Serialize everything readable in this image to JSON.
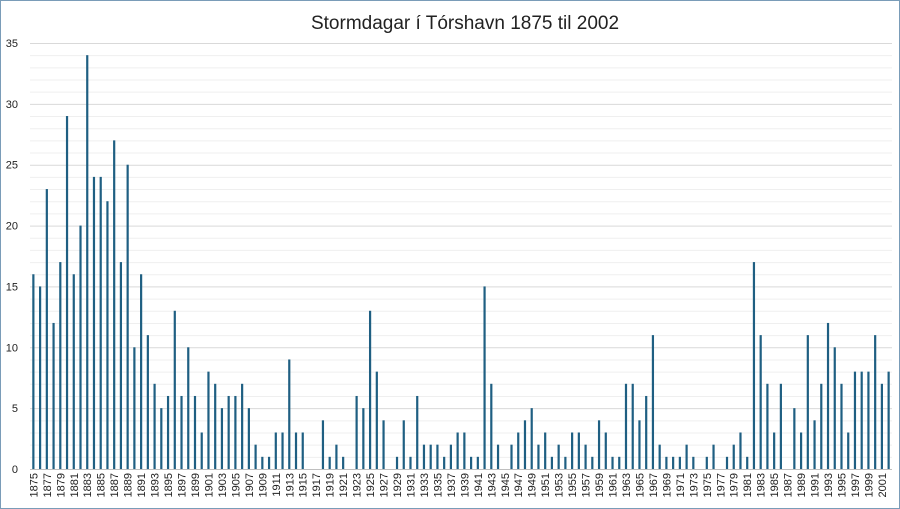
{
  "chart_data": {
    "type": "bar",
    "title": "Stormdagar í Tórshavn 1875 til 2002",
    "xlabel": "",
    "ylabel": "",
    "ylim": [
      0,
      35
    ],
    "yticks": [
      0,
      5,
      10,
      15,
      20,
      25,
      30,
      35
    ],
    "grid": true,
    "bar_color": "#1f5f82",
    "x_start": 1875,
    "x_end": 2002,
    "values": [
      16,
      15,
      23,
      12,
      17,
      29,
      16,
      20,
      34,
      24,
      24,
      22,
      27,
      17,
      25,
      10,
      16,
      11,
      7,
      5,
      6,
      13,
      6,
      10,
      6,
      3,
      8,
      7,
      5,
      6,
      6,
      7,
      5,
      2,
      1,
      1,
      3,
      3,
      9,
      3,
      3,
      0,
      0,
      4,
      1,
      2,
      1,
      0,
      6,
      5,
      13,
      8,
      4,
      0,
      1,
      4,
      1,
      6,
      2,
      2,
      2,
      1,
      2,
      3,
      3,
      1,
      1,
      15,
      7,
      2,
      0,
      2,
      3,
      4,
      5,
      2,
      3,
      1,
      2,
      1,
      3,
      3,
      2,
      1,
      4,
      3,
      1,
      1,
      7,
      7,
      4,
      6,
      11,
      2,
      1,
      1,
      1,
      2,
      1,
      0,
      1,
      2,
      0,
      1,
      2,
      3,
      1,
      17,
      11,
      7,
      3,
      7,
      0,
      5,
      3,
      11,
      4,
      7,
      12,
      10,
      7,
      3,
      8,
      8,
      8,
      11,
      7,
      8
    ]
  }
}
